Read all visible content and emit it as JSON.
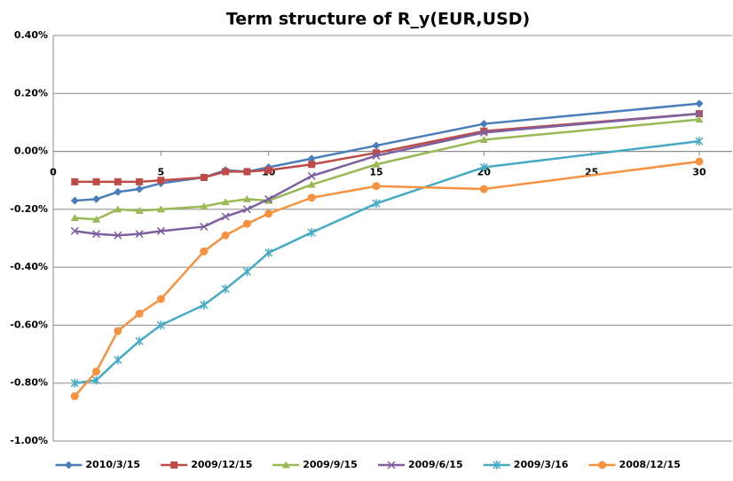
{
  "chart_data": {
    "type": "line",
    "title": "Term structure of R_y(EUR,USD)",
    "x": [
      1,
      2,
      3,
      4,
      5,
      7,
      8,
      9,
      10,
      12,
      15,
      20,
      30
    ],
    "xlim": [
      0,
      30
    ],
    "xticks": [
      0,
      5,
      10,
      15,
      20,
      25,
      30
    ],
    "ylim": [
      -1.0,
      0.4
    ],
    "yticks": [
      {
        "value": -1.0,
        "label": "-1.00%"
      },
      {
        "value": -0.8,
        "label": "-0.80%"
      },
      {
        "value": -0.6,
        "label": "-0.60%"
      },
      {
        "value": -0.4,
        "label": "-0.40%"
      },
      {
        "value": -0.2,
        "label": "-0.20%"
      },
      {
        "value": 0.0,
        "label": "0.00%"
      },
      {
        "value": 0.2,
        "label": "0.20%"
      },
      {
        "value": 0.4,
        "label": "0.40%"
      }
    ],
    "grid": true,
    "legend": "bottom",
    "series": [
      {
        "name": "2010/3/15",
        "color": "#4a7ebb",
        "marker": "diamond",
        "values": [
          -0.17,
          -0.165,
          -0.14,
          -0.13,
          -0.11,
          -0.09,
          -0.065,
          -0.07,
          -0.055,
          -0.025,
          0.02,
          0.095,
          0.165
        ]
      },
      {
        "name": "2009/12/15",
        "color": "#be4b48",
        "marker": "square",
        "values": [
          -0.105,
          -0.105,
          -0.105,
          -0.105,
          -0.1,
          -0.09,
          -0.07,
          -0.07,
          -0.065,
          -0.045,
          -0.005,
          0.07,
          0.13
        ]
      },
      {
        "name": "2009/9/15",
        "color": "#98b954",
        "marker": "triangle",
        "values": [
          -0.23,
          -0.235,
          -0.2,
          -0.205,
          -0.2,
          -0.19,
          -0.175,
          -0.165,
          -0.17,
          -0.115,
          -0.045,
          0.04,
          0.11
        ]
      },
      {
        "name": "2009/6/15",
        "color": "#7d60a0",
        "marker": "x",
        "values": [
          -0.275,
          -0.285,
          -0.29,
          -0.285,
          -0.275,
          -0.26,
          -0.225,
          -0.2,
          -0.165,
          -0.085,
          -0.015,
          0.065,
          0.13
        ]
      },
      {
        "name": "2009/3/16",
        "color": "#46aac5",
        "marker": "star",
        "values": [
          -0.8,
          -0.79,
          -0.72,
          -0.655,
          -0.6,
          -0.53,
          -0.475,
          -0.415,
          -0.35,
          -0.28,
          -0.18,
          -0.055,
          0.035
        ]
      },
      {
        "name": "2008/12/15",
        "color": "#f69240",
        "marker": "circle",
        "values": [
          -0.845,
          -0.76,
          -0.62,
          -0.56,
          -0.51,
          -0.345,
          -0.29,
          -0.25,
          -0.215,
          -0.16,
          -0.12,
          -0.13,
          -0.035
        ]
      }
    ]
  }
}
